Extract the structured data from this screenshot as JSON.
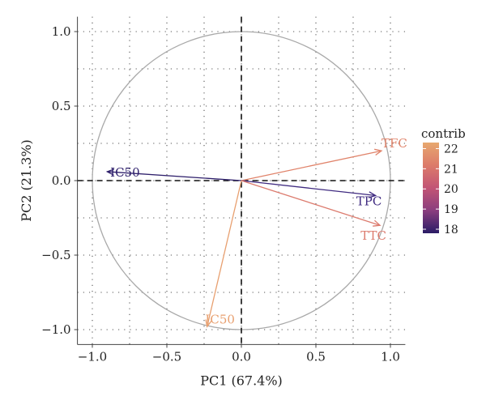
{
  "chart_data": {
    "type": "scatter",
    "subtype": "pca-variable-correlation-circle",
    "xlabel": "PC1 (67.4%)",
    "ylabel": "PC2 (21.3%)",
    "xlim": [
      -1.1,
      1.1
    ],
    "ylim": [
      -1.1,
      1.1
    ],
    "x_ticks": [
      -1.0,
      -0.5,
      0.0,
      0.5,
      1.0
    ],
    "y_ticks": [
      -1.0,
      -0.5,
      0.0,
      0.5,
      1.0
    ],
    "x_tick_labels": [
      "−1.0",
      "−0.5",
      "0.0",
      "0.5",
      "1.0"
    ],
    "y_tick_labels": [
      "−1.0",
      "−0.5",
      "0.0",
      "0.5",
      "1.0"
    ],
    "grid": "dotted",
    "unit_circle": true,
    "variables": [
      {
        "label": "TFC",
        "x": 0.94,
        "y": 0.2,
        "contrib": 21.5,
        "color": "#e0836a"
      },
      {
        "label": "IC50",
        "x": -0.9,
        "y": 0.06,
        "contrib": 18.0,
        "color": "#2e1f6b"
      },
      {
        "label": "TPC",
        "x": 0.9,
        "y": -0.1,
        "contrib": 18.4,
        "color": "#3f2a80"
      },
      {
        "label": "TTC",
        "x": 0.93,
        "y": -0.3,
        "contrib": 21.0,
        "color": "#dc7b6e"
      },
      {
        "label": "IC50",
        "x": -0.23,
        "y": -0.98,
        "contrib": 22.0,
        "color": "#e8a070"
      }
    ],
    "legend": {
      "title": "contrib",
      "position": "right",
      "ticks": [
        "22",
        "21",
        "20",
        "19",
        "18"
      ],
      "tick_values": [
        22,
        21,
        20,
        19,
        18
      ],
      "range": [
        17.8,
        22.3
      ],
      "gradient_colors": [
        "#e7a86f",
        "#dc7b6a",
        "#c25475",
        "#8a3e7e",
        "#2a1c66"
      ]
    }
  }
}
